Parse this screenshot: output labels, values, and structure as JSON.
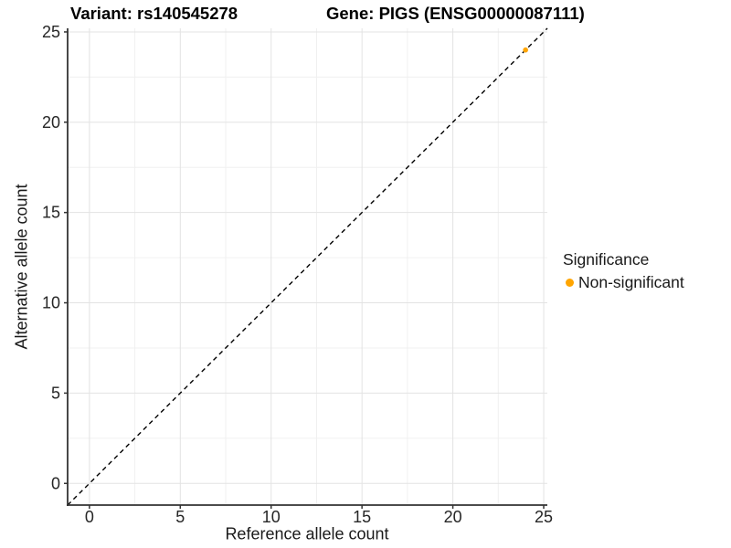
{
  "figure": {
    "title_left": "Variant: rs140545278",
    "title_right": "Gene: PIGS (ENSG00000087111)"
  },
  "chart_data": {
    "type": "scatter",
    "title": "Variant: rs140545278 / Gene: PIGS (ENSG00000087111)",
    "xlabel": "Reference allele count",
    "ylabel": "Alternative allele count",
    "xlim": [
      -1.2,
      25.2
    ],
    "ylim": [
      -1.2,
      25.2
    ],
    "x_ticks": [
      0,
      5,
      10,
      15,
      20,
      25
    ],
    "y_ticks": [
      0,
      5,
      10,
      15,
      20,
      25
    ],
    "minor_tick_step": 2.5,
    "grid": "major+minor",
    "series": [
      {
        "name": "Non-significant",
        "color": "#FFA500",
        "points": [
          {
            "x": 24,
            "y": 24
          }
        ]
      }
    ],
    "reference_line": {
      "type": "identity",
      "slope": 1,
      "intercept": 0,
      "style": "dashed",
      "color": "#000000"
    },
    "legend": {
      "title": "Significance",
      "position": "right",
      "items": [
        {
          "label": "Non-significant",
          "color": "#FFA500"
        }
      ]
    },
    "colors": {
      "background": "#FFFFFF",
      "grid_major": "#E3E3E3",
      "grid_minor": "#F0F0F0",
      "axis_line": "#333333",
      "tick_text": "#262626"
    }
  }
}
